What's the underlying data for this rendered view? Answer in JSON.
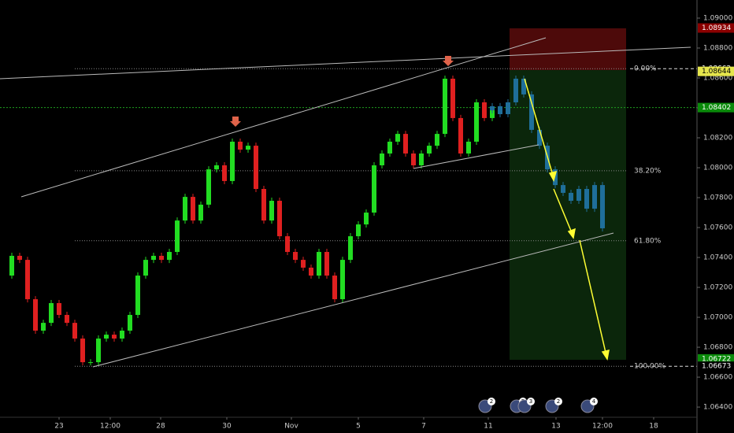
{
  "chart_data": {
    "type": "candles",
    "xlim": [
      0,
      88.5
    ],
    "ylim": [
      1.06332,
      1.09121
    ],
    "xticks": [
      {
        "value": 7.5,
        "label": "23"
      },
      {
        "value": 14,
        "label": "12:00"
      },
      {
        "value": 20.4,
        "label": "28"
      },
      {
        "value": 28.8,
        "label": "30"
      },
      {
        "value": 37,
        "label": "Nov"
      },
      {
        "value": 45.5,
        "label": "5"
      },
      {
        "value": 53.8,
        "label": "7"
      },
      {
        "value": 62,
        "label": "11"
      },
      {
        "value": 70.6,
        "label": "13"
      },
      {
        "value": 76.5,
        "label": "12:00"
      },
      {
        "value": 83,
        "label": "18"
      }
    ],
    "yticks": [
      {
        "value": 1.09,
        "label": "1.09000"
      },
      {
        "value": 1.088,
        "label": "1.08800"
      },
      {
        "value": 1.086,
        "label": "1.08600"
      },
      {
        "value": 1.084,
        "label": "1.08400"
      },
      {
        "value": 1.082,
        "label": "1.08200"
      },
      {
        "value": 1.08,
        "label": "1.08000"
      },
      {
        "value": 1.078,
        "label": "1.07800"
      },
      {
        "value": 1.076,
        "label": "1.07600"
      },
      {
        "value": 1.074,
        "label": "1.07400"
      },
      {
        "value": 1.072,
        "label": "1.07200"
      },
      {
        "value": 1.07,
        "label": "1.07000"
      },
      {
        "value": 1.068,
        "label": "1.06800"
      },
      {
        "value": 1.066,
        "label": "1.06600"
      },
      {
        "value": 1.064,
        "label": "1.06400"
      }
    ],
    "up_color": "#22dd22",
    "down_color": "#e02020",
    "series": [
      {
        "name": "Price",
        "color": "#22dd22",
        "x": [
          0.5,
          1.5,
          2.5,
          3.5,
          4.5,
          5.5,
          6.5,
          7.5,
          8.5,
          9.5,
          10.5,
          11.5,
          12.5,
          13.5,
          14.5,
          15.5,
          16.5,
          17.5,
          18.5,
          19.5,
          20.5,
          21.5,
          22.5,
          23.5,
          24.5,
          25.5,
          26.5,
          27.5,
          28.5,
          29.5,
          30.5,
          31.5,
          32.5,
          33.5,
          34.5,
          35.5,
          36.5,
          37.5,
          38.5,
          39.5,
          40.5,
          41.5,
          42.5,
          43.5,
          44.5,
          45.5,
          46.5,
          47.5,
          48.5,
          49.5,
          50.5,
          51.5,
          52.5,
          53.5,
          54.5,
          55.5,
          56.5,
          57.5,
          58.5,
          59.5,
          60.5,
          61.5,
          62.5,
          63.5
        ],
        "values": [
          1.07279,
          1.07411,
          1.07384,
          1.07121,
          1.06911,
          1.06963,
          1.07095,
          1.07016,
          1.06963,
          1.06858,
          1.067,
          1.067,
          1.06858,
          1.06884,
          1.06858,
          1.06911,
          1.07016,
          1.07279,
          1.07384,
          1.07411,
          1.07384,
          1.07437,
          1.07647,
          1.07805,
          1.07647,
          1.07753,
          1.07989,
          1.08016,
          1.07911,
          1.08174,
          1.08121,
          1.08147,
          1.07858,
          1.07647,
          1.07779,
          1.07542,
          1.07437,
          1.07384,
          1.07332,
          1.07279,
          1.07437,
          1.07279,
          1.07121,
          1.07384,
          1.07542,
          1.07621,
          1.077,
          1.08016,
          1.08095,
          1.08174,
          1.08226,
          1.08095,
          1.08016,
          1.08095,
          1.08147,
          1.08226,
          1.08595,
          1.08332,
          1.08095,
          1.08174,
          1.08437,
          1.08332,
          1.08384,
          1.08358
        ]
      },
      {
        "name": "Projection",
        "color": "#1f6f9a",
        "x": [
          61.5,
          62.5,
          63.5,
          64.5,
          65.5,
          66.5,
          67.5,
          68.5,
          69.5,
          70.5,
          71.5,
          72.5,
          73.5,
          74.5,
          75.5,
          76.5
        ],
        "values": [
          1.08384,
          1.08411,
          1.08358,
          1.08437,
          1.08595,
          1.0849,
          1.08253,
          1.08147,
          1.07989,
          1.07884,
          1.07832,
          1.07779,
          1.07858,
          1.07726,
          1.07884,
          1.07595
        ]
      }
    ],
    "fib_levels": [
      {
        "value": 1.08662,
        "label": "0.00%"
      },
      {
        "value": 1.0798,
        "label": "38.20%"
      },
      {
        "value": 1.07512,
        "label": "61.80%"
      },
      {
        "value": 1.06673,
        "label": "100.00%"
      }
    ],
    "price_tags": [
      {
        "value": 1.08934,
        "color": "#8b0000"
      },
      {
        "value": 1.08662,
        "color": "#000000"
      },
      {
        "value": 1.08644,
        "color": "#e5e54c"
      },
      {
        "value": 1.08402,
        "color": "#0a8a0a"
      },
      {
        "value": 1.06722,
        "color": "#0a8a0a"
      },
      {
        "value": 1.06673,
        "color": "#000000"
      }
    ],
    "events": [
      "2",
      "2",
      "3",
      "2",
      "4"
    ]
  }
}
